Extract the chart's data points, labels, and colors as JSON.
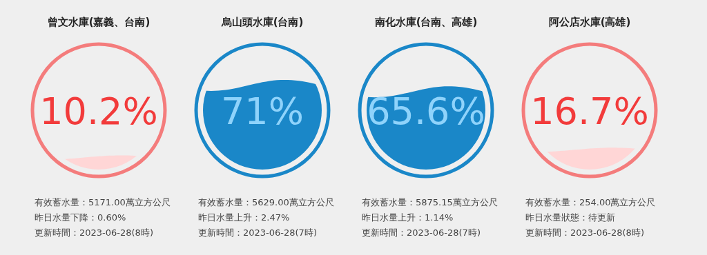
{
  "chart_data": [
    {
      "type": "other",
      "title": "曾文水庫(嘉義、台南)",
      "values": [
        10.2
      ],
      "value_labels": [
        "10.2%"
      ],
      "colors": [
        "#f47c7c"
      ],
      "annotations": [
        "有效蓄水量：5171.00萬立方公尺",
        "昨日水量下降：0.60%",
        "更新時間：2023-06-28(8時)"
      ]
    },
    {
      "type": "other",
      "title": "烏山頭水庫(台南)",
      "values": [
        71
      ],
      "value_labels": [
        "71%"
      ],
      "colors": [
        "#1a87c8"
      ],
      "annotations": [
        "有效蓄水量：5629.00萬立方公尺",
        "昨日水量上升：2.47%",
        "更新時間：2023-06-28(7時)"
      ]
    },
    {
      "type": "other",
      "title": "南化水庫(台南、高雄)",
      "values": [
        65.6
      ],
      "value_labels": [
        "65.6%"
      ],
      "colors": [
        "#1a87c8"
      ],
      "annotations": [
        "有效蓄水量：5875.15萬立方公尺",
        "昨日水量上升：1.14%",
        "更新時間：2023-06-28(7時)"
      ]
    },
    {
      "type": "other",
      "title": "阿公店水庫(高雄)",
      "values": [
        16.7
      ],
      "value_labels": [
        "16.7%"
      ],
      "colors": [
        "#f47c7c"
      ],
      "annotations": [
        "有效蓄水量：254.00萬立方公尺",
        "昨日水量狀態：待更新",
        "更新時間：2023-06-28(8時)"
      ]
    }
  ]
}
